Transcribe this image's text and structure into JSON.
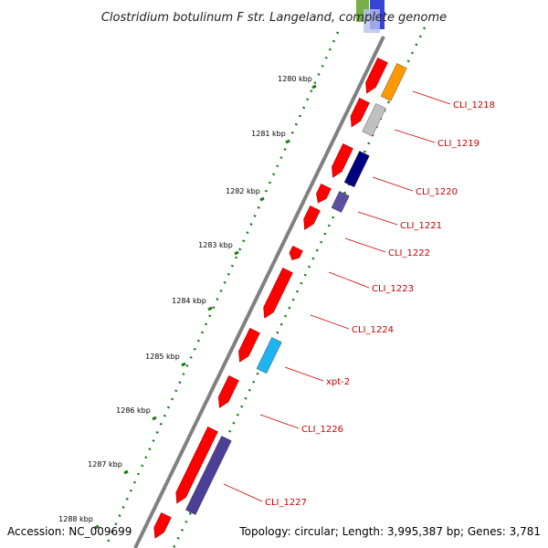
{
  "title": "Clostridium botulinum F str. Langeland, complete genome",
  "footer": {
    "accession": "Accession: NC_009699",
    "topology": "Topology: circular; Length: 3,995,387 bp; Genes: 3,781"
  },
  "colors": {
    "backbone": "#808080",
    "ticks": "#1a7a1a",
    "gene_forward": "#ff0000",
    "label": "#cc0000"
  },
  "kbp_labels": [
    "1280 kbp",
    "1281 kbp",
    "1282 kbp",
    "1283 kbp",
    "1284 kbp",
    "1285 kbp",
    "1286 kbp",
    "1287 kbp",
    "1288 kbp"
  ],
  "gene_labels": [
    "CLI_1218",
    "CLI_1219",
    "CLI_1220",
    "CLI_1221",
    "CLI_1222",
    "CLI_1223",
    "CLI_1224",
    "xpt-2",
    "CLI_1226",
    "CLI_1227"
  ],
  "inner_genes": [
    {
      "color": "#ff9900",
      "label_index": 0
    },
    {
      "color": "#c0c0c0",
      "label_index": 1
    },
    {
      "color": "#000080",
      "label_index": 2
    },
    {
      "color": "#5a4fa0",
      "label_index": 3
    },
    {
      "color": "#1eb4ef",
      "label_index": 7
    },
    {
      "color": "#4b3f96",
      "label_index": 9
    }
  ]
}
